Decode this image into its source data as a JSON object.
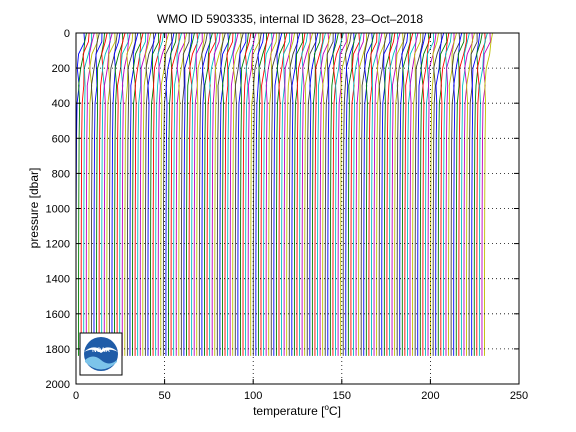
{
  "chart_data": {
    "type": "line",
    "title": "WMO ID 5903335, internal ID 3628, 23–Oct–2018",
    "xlabel_main": "temperature [",
    "xlabel_unit": "o",
    "xlabel_tail": "C]",
    "ylabel": "pressure [dbar]",
    "xlim": [
      0,
      250
    ],
    "ylim": [
      2000,
      0
    ],
    "y_reversed": true,
    "x_ticks": [
      0,
      50,
      100,
      150,
      200,
      250
    ],
    "y_ticks": [
      0,
      200,
      400,
      600,
      800,
      1000,
      1200,
      1400,
      1600,
      1800,
      2000
    ],
    "grid": true,
    "grid_style": "dotted",
    "legend": "none",
    "profile_colors": [
      "#0000ff",
      "#008000",
      "#ff0000",
      "#00bfbf",
      "#bf00bf",
      "#bfbf00",
      "#404040"
    ],
    "profiles": {
      "count": 160,
      "offset_step": 1.45,
      "surface_temperature": 4.5,
      "profile_1_offset": 0,
      "max_pressure": 1840,
      "representative_shape": [
        {
          "p": 0,
          "t": 4.5
        },
        {
          "p": 50,
          "t": 4.0
        },
        {
          "p": 120,
          "t": 2.0
        },
        {
          "p": 200,
          "t": 1.2
        },
        {
          "p": 300,
          "t": 0.9
        },
        {
          "p": 400,
          "t": 0.6
        },
        {
          "p": 600,
          "t": 0.3
        },
        {
          "p": 1000,
          "t": 0.1
        },
        {
          "p": 1400,
          "t": 0.0
        },
        {
          "p": 1840,
          "t": 0.0
        }
      ]
    },
    "logo": {
      "text": "NOAA",
      "position": "bottom-left"
    }
  }
}
